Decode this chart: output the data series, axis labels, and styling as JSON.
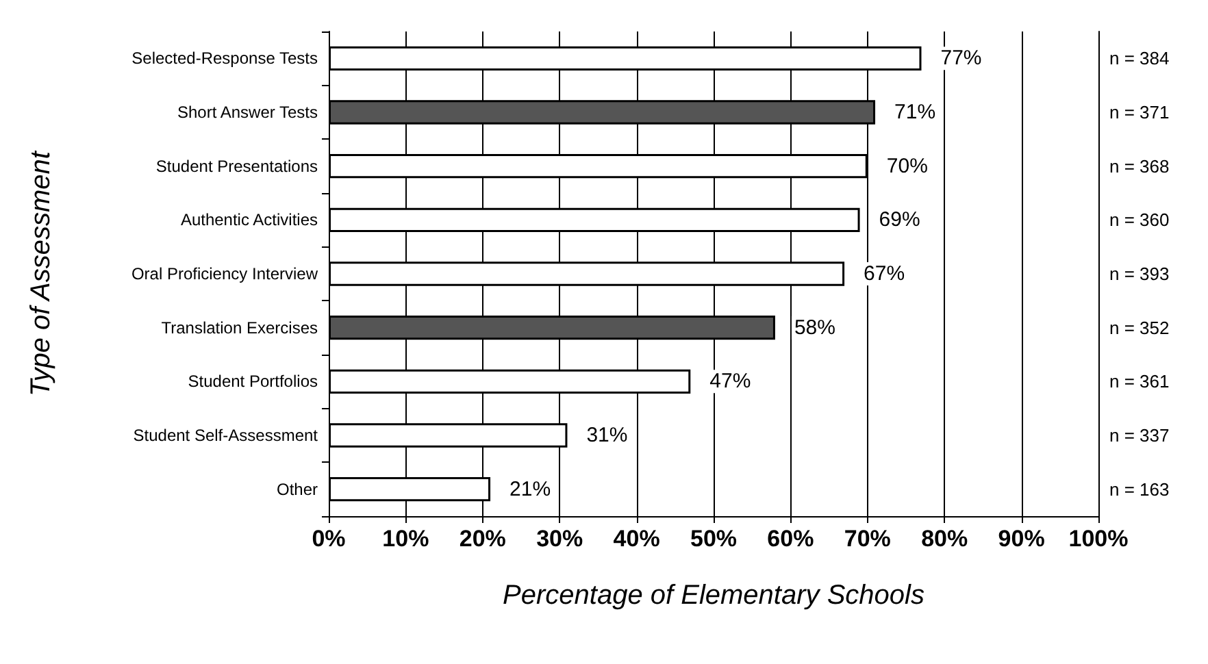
{
  "chart_data": {
    "type": "bar",
    "orientation": "horizontal",
    "xlabel": "Percentage of Elementary Schools",
    "ylabel": "Type of Assessment",
    "categories": [
      "Selected-Response Tests",
      "Short Answer Tests",
      "Student Presentations",
      "Authentic Activities",
      "Oral Proficiency Interview",
      "Translation Exercises",
      "Student Portfolios",
      "Student Self-Assessment",
      "Other"
    ],
    "y2_categories": [
      "n = 384",
      "n = 371",
      "n = 368",
      "n = 360",
      "n = 393",
      "n = 352",
      "n = 361",
      "n = 337",
      "n = 163"
    ],
    "values": [
      77,
      71,
      70,
      69,
      67,
      58,
      47,
      31,
      21
    ],
    "colors": [
      "#ffffff",
      "#555555",
      "#ffffff",
      "#ffffff",
      "#ffffff",
      "#555555",
      "#ffffff",
      "#ffffff",
      "#ffffff"
    ],
    "value_labels": [
      "77%",
      "71%",
      "70%",
      "69%",
      "67%",
      "58%",
      "47%",
      "31%",
      "21%"
    ],
    "xlim": [
      0,
      100
    ],
    "xticks": [
      {
        "value": 0,
        "label": "0%"
      },
      {
        "value": 10,
        "label": "10%"
      },
      {
        "value": 20,
        "label": "20%"
      },
      {
        "value": 30,
        "label": "30%"
      },
      {
        "value": 40,
        "label": "40%"
      },
      {
        "value": 50,
        "label": "50%"
      },
      {
        "value": 60,
        "label": "60%"
      },
      {
        "value": 70,
        "label": "70%"
      },
      {
        "value": 80,
        "label": "80%"
      },
      {
        "value": 90,
        "label": "90%"
      },
      {
        "value": 100,
        "label": "100%"
      }
    ],
    "grid": "x"
  }
}
